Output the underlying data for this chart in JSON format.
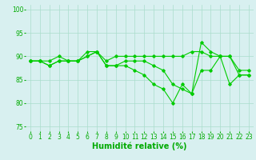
{
  "x": [
    0,
    1,
    2,
    3,
    4,
    5,
    6,
    7,
    8,
    9,
    10,
    11,
    12,
    13,
    14,
    15,
    16,
    17,
    18,
    19,
    20,
    21,
    22,
    23
  ],
  "series": [
    [
      89,
      89,
      89,
      90,
      89,
      89,
      91,
      91,
      89,
      90,
      90,
      90,
      90,
      90,
      90,
      90,
      90,
      91,
      91,
      90,
      90,
      90,
      86,
      86
    ],
    [
      89,
      89,
      88,
      89,
      89,
      89,
      90,
      91,
      88,
      88,
      89,
      89,
      89,
      88,
      87,
      84,
      83,
      82,
      87,
      87,
      90,
      90,
      87,
      87
    ],
    [
      89,
      89,
      88,
      89,
      89,
      89,
      90,
      91,
      88,
      88,
      88,
      87,
      86,
      84,
      83,
      80,
      84,
      82,
      93,
      91,
      90,
      84,
      86,
      86
    ]
  ],
  "line_color": "#00cc00",
  "marker": "D",
  "marker_size": 1.8,
  "linewidth": 0.8,
  "xlim": [
    -0.5,
    23.5
  ],
  "ylim": [
    74,
    101
  ],
  "yticks": [
    75,
    80,
    85,
    90,
    95,
    100
  ],
  "xticks": [
    0,
    1,
    2,
    3,
    4,
    5,
    6,
    7,
    8,
    9,
    10,
    11,
    12,
    13,
    14,
    15,
    16,
    17,
    18,
    19,
    20,
    21,
    22,
    23
  ],
  "xlabel": "Humidité relative (%)",
  "bg_color": "#d8f0f0",
  "grid_color": "#aaddcc",
  "tick_color": "#00aa00",
  "label_color": "#00aa00",
  "tick_fontsize": 5.5,
  "xlabel_fontsize": 7.0
}
